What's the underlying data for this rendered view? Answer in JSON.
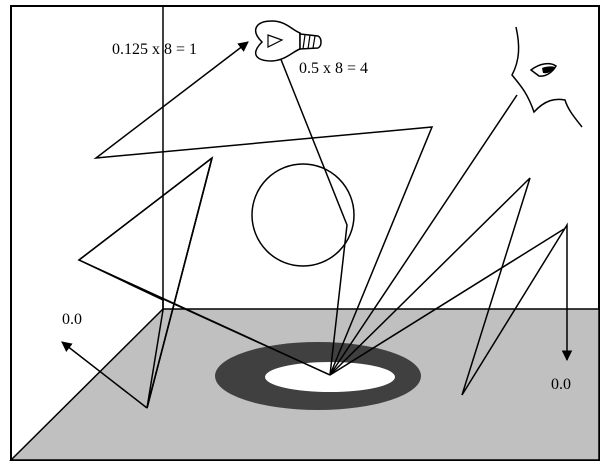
{
  "figure": {
    "kind": "ray-tracing path diagram",
    "labels": {
      "light_bounce_product": "0.125 x 8 = 1",
      "light_direct_product": "0.5 x 8 = 4",
      "left_miss_value": "0.0",
      "right_miss_value": "0.0"
    },
    "colors": {
      "floor": "#c0c0c0",
      "ring_dark": "#404040",
      "ring_hole": "#ffffff",
      "stroke": "#000000",
      "background": "#ffffff"
    },
    "icons": [
      "light-bulb-icon",
      "eye-face-icon"
    ]
  }
}
